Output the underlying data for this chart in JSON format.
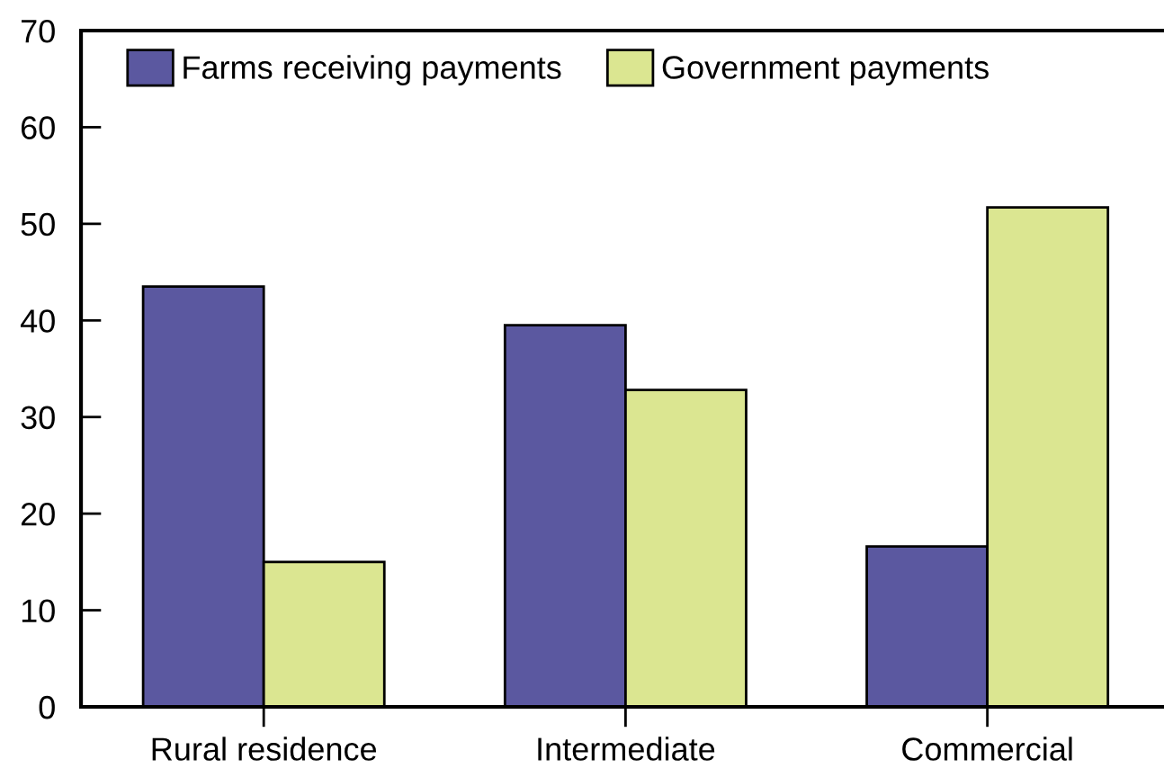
{
  "chart_data": {
    "type": "bar",
    "categories": [
      "Rural residence",
      "Intermediate",
      "Commercial"
    ],
    "series": [
      {
        "name": "Farms receiving payments",
        "color": "#5b58a0",
        "values": [
          43.5,
          39.5,
          16.6
        ]
      },
      {
        "name": "Government payments",
        "color": "#dbe691",
        "values": [
          15.0,
          32.8,
          51.7
        ]
      }
    ],
    "ylim": [
      0,
      70
    ],
    "yticks": [
      0,
      10,
      20,
      30,
      40,
      50,
      60,
      70
    ],
    "grid": false,
    "legend": "top left"
  }
}
